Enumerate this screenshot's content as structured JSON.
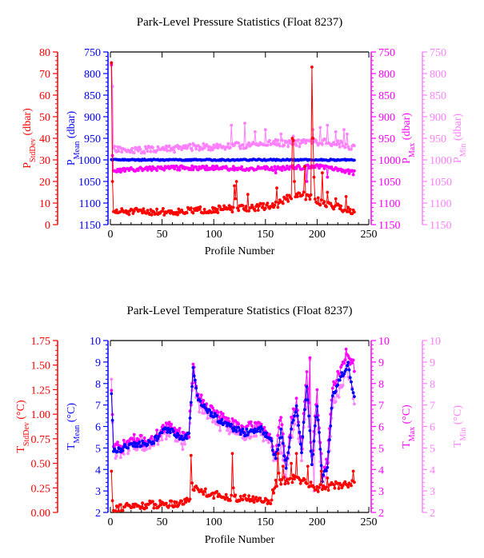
{
  "chart_data": [
    {
      "type": "line",
      "title": "Park-Level Pressure Statistics (Float 8237)",
      "xlabel": "Profile Number",
      "xlim": [
        0,
        250
      ],
      "x_ticks": [
        "0",
        "50",
        "100",
        "150",
        "200",
        "250"
      ],
      "axes": [
        {
          "id": "sd",
          "label_main": "P",
          "label_sub": "StdDev",
          "label_unit": " (dbar)",
          "color": "#ff0000",
          "side": "left",
          "lim": [
            0,
            80
          ],
          "inverted": false,
          "ticks": [
            0,
            10,
            20,
            30,
            40,
            50,
            60,
            70,
            80
          ]
        },
        {
          "id": "mean",
          "label_main": "P",
          "label_sub": "Mean",
          "label_unit": " (dbar)",
          "color": "#0000ff",
          "side": "left",
          "lim": [
            750,
            1150
          ],
          "inverted": true,
          "ticks": [
            750,
            800,
            850,
            900,
            950,
            1000,
            1050,
            1100,
            1150
          ]
        },
        {
          "id": "max",
          "label_main": "P",
          "label_sub": "Max",
          "label_unit": " (dbar)",
          "color": "#ff00ff",
          "side": "right",
          "lim": [
            750,
            1150
          ],
          "inverted": true,
          "ticks": [
            750,
            800,
            850,
            900,
            950,
            1000,
            1050,
            1100,
            1150
          ]
        },
        {
          "id": "min",
          "label_main": "P",
          "label_sub": "Min",
          "label_unit": " (dbar)",
          "color": "#ff80ff",
          "side": "right",
          "lim": [
            750,
            1150
          ],
          "inverted": true,
          "ticks": [
            750,
            800,
            850,
            900,
            950,
            1000,
            1050,
            1100,
            1150
          ]
        }
      ],
      "series": [
        {
          "axis": "min",
          "color": "#ff80ff",
          "seed": 11,
          "anchors": [
            [
              1,
              775
            ],
            [
              2,
              820
            ],
            [
              3,
              975
            ],
            [
              20,
              980
            ],
            [
              40,
              975
            ],
            [
              60,
              975
            ],
            [
              80,
              970
            ],
            [
              100,
              970
            ],
            [
              120,
              968
            ],
            [
              140,
              965
            ],
            [
              160,
              960
            ],
            [
              180,
              962
            ],
            [
              200,
              958
            ],
            [
              220,
              962
            ],
            [
              236,
              970
            ]
          ],
          "noise": 8,
          "spikes": [
            [
              1,
              775
            ],
            [
              2,
              830
            ],
            [
              117,
              920
            ],
            [
              130,
              915
            ],
            [
              140,
              935
            ],
            [
              150,
              930
            ],
            [
              165,
              940
            ],
            [
              177,
              945
            ],
            [
              196,
              930
            ],
            [
              203,
              925
            ],
            [
              210,
              920
            ],
            [
              218,
              935
            ],
            [
              226,
              930
            ],
            [
              229,
              940
            ]
          ]
        },
        {
          "axis": "max",
          "color": "#ff00ff",
          "seed": 23,
          "anchors": [
            [
              1,
              970
            ],
            [
              3,
              1025
            ],
            [
              40,
              1020
            ],
            [
              80,
              1018
            ],
            [
              120,
              1020
            ],
            [
              160,
              1020
            ],
            [
              200,
              1015
            ],
            [
              236,
              1030
            ]
          ],
          "noise": 5,
          "spikes": [
            [
              1,
              780
            ],
            [
              2,
              990
            ],
            [
              160,
              1030
            ],
            [
              190,
              1050
            ],
            [
              210,
              1040
            ]
          ]
        },
        {
          "axis": "mean",
          "color": "#0000ff",
          "seed": 37,
          "anchors": [
            [
              1,
              1000
            ],
            [
              60,
              1000
            ],
            [
              120,
              1000
            ],
            [
              180,
              1000
            ],
            [
              236,
              1000
            ]
          ],
          "noise": 1.5,
          "spikes": []
        },
        {
          "axis": "sd",
          "color": "#ff0000",
          "seed": 51,
          "anchors": [
            [
              1,
              6
            ],
            [
              20,
              6
            ],
            [
              60,
              6
            ],
            [
              100,
              7
            ],
            [
              140,
              8
            ],
            [
              160,
              9
            ],
            [
              170,
              12
            ],
            [
              185,
              14
            ],
            [
              200,
              11
            ],
            [
              236,
              6
            ]
          ],
          "noise": 1.6,
          "spikes": [
            [
              1,
              75
            ],
            [
              2,
              20
            ],
            [
              3,
              6
            ],
            [
              120,
              18
            ],
            [
              121,
              12
            ],
            [
              122,
              20
            ],
            [
              133,
              14
            ],
            [
              161,
              17
            ],
            [
              175,
              12
            ],
            [
              176,
              40
            ],
            [
              177,
              39
            ],
            [
              178,
              20
            ],
            [
              188,
              27
            ],
            [
              195,
              73
            ],
            [
              196,
              40
            ],
            [
              197,
              22
            ],
            [
              205,
              24
            ],
            [
              210,
              15
            ],
            [
              218,
              12
            ],
            [
              228,
              13
            ]
          ]
        }
      ]
    },
    {
      "type": "line",
      "title": "Park-Level Temperature Statistics (Float 8237)",
      "xlabel": "Profile Number",
      "xlim": [
        0,
        250
      ],
      "x_ticks": [
        "0",
        "50",
        "100",
        "150",
        "200",
        "250"
      ],
      "axes": [
        {
          "id": "sd",
          "label_main": "T",
          "label_sub": "StdDev",
          "label_unit": " (°C)",
          "color": "#ff0000",
          "side": "left",
          "lim": [
            0,
            1.75
          ],
          "inverted": false,
          "ticks": [
            "0.00",
            "0.25",
            "0.50",
            "0.75",
            "1.00",
            "1.25",
            "1.50",
            "1.75"
          ]
        },
        {
          "id": "mean",
          "label_main": "T",
          "label_sub": "Mean",
          "label_unit": " (°C)",
          "color": "#0000ff",
          "side": "left",
          "lim": [
            2,
            10
          ],
          "inverted": false,
          "ticks": [
            2,
            3,
            4,
            5,
            6,
            7,
            8,
            9,
            10
          ]
        },
        {
          "id": "max",
          "label_main": "T",
          "label_sub": "Max",
          "label_unit": " (°C)",
          "color": "#ff00ff",
          "side": "right",
          "lim": [
            2,
            10
          ],
          "inverted": false,
          "ticks": [
            2,
            3,
            4,
            5,
            6,
            7,
            8,
            9,
            10
          ]
        },
        {
          "id": "min",
          "label_main": "T",
          "label_sub": "Min",
          "label_unit": " (°C)",
          "color": "#ff80ff",
          "side": "right",
          "lim": [
            2,
            10
          ],
          "inverted": false,
          "ticks": [
            2,
            3,
            4,
            5,
            6,
            7,
            8,
            9,
            10
          ]
        }
      ],
      "series": [
        {
          "axis": "min",
          "color": "#ff80ff",
          "seed": 61,
          "anchors": [
            [
              1,
              7.2
            ],
            [
              3,
              4.8
            ],
            [
              10,
              4.8
            ],
            [
              20,
              5.1
            ],
            [
              40,
              5.1
            ],
            [
              50,
              5.6
            ],
            [
              60,
              5.7
            ],
            [
              70,
              5.2
            ],
            [
              76,
              5.5
            ],
            [
              80,
              8.5
            ],
            [
              85,
              7.0
            ],
            [
              100,
              6.3
            ],
            [
              115,
              5.8
            ],
            [
              130,
              5.6
            ],
            [
              145,
              5.8
            ],
            [
              155,
              5.2
            ],
            [
              160,
              4.2
            ],
            [
              165,
              5.0
            ],
            [
              170,
              3.8
            ],
            [
              175,
              5.5
            ],
            [
              180,
              6.5
            ],
            [
              185,
              4.5
            ],
            [
              190,
              7.5
            ],
            [
              195,
              4.0
            ],
            [
              200,
              6.5
            ],
            [
              205,
              3.2
            ],
            [
              210,
              3.8
            ],
            [
              215,
              7.0
            ],
            [
              220,
              7.5
            ],
            [
              225,
              8.0
            ],
            [
              230,
              8.5
            ],
            [
              236,
              7.2
            ]
          ],
          "noise": 0.3,
          "spikes": [
            [
              1,
              8.2
            ],
            [
              193,
              9.1
            ],
            [
              197,
              3.0
            ],
            [
              228,
              9.4
            ]
          ]
        },
        {
          "axis": "max",
          "color": "#ff00ff",
          "seed": 71,
          "anchors": [
            [
              1,
              7.8
            ],
            [
              3,
              5.1
            ],
            [
              10,
              5.0
            ],
            [
              20,
              5.4
            ],
            [
              40,
              5.3
            ],
            [
              50,
              5.9
            ],
            [
              60,
              6.0
            ],
            [
              70,
              5.6
            ],
            [
              76,
              5.7
            ],
            [
              80,
              8.8
            ],
            [
              85,
              7.4
            ],
            [
              100,
              6.7
            ],
            [
              115,
              6.2
            ],
            [
              130,
              5.9
            ],
            [
              145,
              6.1
            ],
            [
              155,
              5.5
            ],
            [
              160,
              4.6
            ],
            [
              165,
              6.5
            ],
            [
              170,
              4.2
            ],
            [
              175,
              6.2
            ],
            [
              180,
              7.2
            ],
            [
              185,
              5.0
            ],
            [
              190,
              8.5
            ],
            [
              195,
              4.5
            ],
            [
              200,
              7.5
            ],
            [
              205,
              3.8
            ],
            [
              210,
              4.5
            ],
            [
              215,
              7.8
            ],
            [
              220,
              8.4
            ],
            [
              225,
              8.9
            ],
            [
              230,
              9.3
            ],
            [
              236,
              8.8
            ]
          ],
          "noise": 0.25,
          "spikes": [
            [
              193,
              9.2
            ],
            [
              228,
              9.6
            ]
          ]
        },
        {
          "axis": "mean",
          "color": "#0000ff",
          "seed": 81,
          "anchors": [
            [
              1,
              7.6
            ],
            [
              3,
              4.9
            ],
            [
              10,
              4.9
            ],
            [
              20,
              5.2
            ],
            [
              40,
              5.2
            ],
            [
              50,
              5.8
            ],
            [
              60,
              5.8
            ],
            [
              70,
              5.4
            ],
            [
              76,
              5.6
            ],
            [
              80,
              8.6
            ],
            [
              85,
              7.2
            ],
            [
              100,
              6.5
            ],
            [
              115,
              6.0
            ],
            [
              130,
              5.7
            ],
            [
              145,
              5.9
            ],
            [
              155,
              5.4
            ],
            [
              160,
              4.4
            ],
            [
              165,
              5.8
            ],
            [
              170,
              4.0
            ],
            [
              175,
              5.9
            ],
            [
              180,
              6.9
            ],
            [
              185,
              4.8
            ],
            [
              190,
              8.0
            ],
            [
              195,
              4.2
            ],
            [
              200,
              7.0
            ],
            [
              205,
              3.5
            ],
            [
              210,
              4.2
            ],
            [
              215,
              7.4
            ],
            [
              220,
              8.0
            ],
            [
              225,
              8.5
            ],
            [
              230,
              8.9
            ],
            [
              236,
              7.3
            ]
          ],
          "noise": 0.15,
          "spikes": []
        },
        {
          "axis": "sd",
          "color": "#ff0000",
          "seed": 91,
          "anchors": [
            [
              1,
              0.06
            ],
            [
              3,
              0.05
            ],
            [
              20,
              0.06
            ],
            [
              40,
              0.08
            ],
            [
              60,
              0.09
            ],
            [
              76,
              0.12
            ],
            [
              80,
              0.25
            ],
            [
              100,
              0.18
            ],
            [
              130,
              0.14
            ],
            [
              155,
              0.12
            ],
            [
              160,
              0.3
            ],
            [
              180,
              0.35
            ],
            [
              200,
              0.25
            ],
            [
              236,
              0.3
            ]
          ],
          "noise": 0.04,
          "spikes": [
            [
              1,
              0.42
            ],
            [
              2,
              0.12
            ],
            [
              78,
              0.58
            ],
            [
              79,
              0.3
            ],
            [
              118,
              0.6
            ],
            [
              119,
              0.25
            ],
            [
              162,
              0.6
            ],
            [
              163,
              0.4
            ],
            [
              167,
              0.47
            ],
            [
              175,
              0.5
            ],
            [
              180,
              0.6
            ],
            [
              191,
              0.47
            ],
            [
              204,
              0.42
            ],
            [
              210,
              0.35
            ],
            [
              235,
              0.42
            ]
          ]
        }
      ]
    }
  ]
}
